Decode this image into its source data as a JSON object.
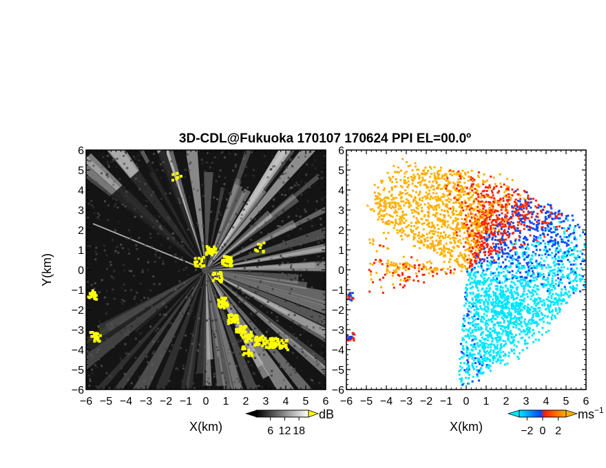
{
  "chart_data": [
    {
      "type": "heatmap",
      "panel": "left",
      "title": "3D-CDL@Fukuoka 170107 170624 PPI EL=00.0º",
      "xlabel": "X(km)",
      "ylabel": "Y(km)",
      "xlim": [
        -6,
        6
      ],
      "ylim": [
        -6,
        6
      ],
      "x_ticks": [
        "−6",
        "−5",
        "−4",
        "−3",
        "−2",
        "−1",
        "0",
        "1",
        "2",
        "3",
        "4",
        "5",
        "6"
      ],
      "y_ticks": [
        "6",
        "5",
        "4",
        "3",
        "2",
        "1",
        "0",
        "−1",
        "−2",
        "−3",
        "−4",
        "−5",
        "−6"
      ],
      "colorbar": {
        "unit": "dB",
        "ticks": [
          "6",
          "12",
          "18"
        ],
        "tick_values": [
          6,
          12,
          18
        ],
        "range": [
          0,
          22
        ],
        "colors": [
          "#000000",
          "#ffffff"
        ],
        "over_color": "#ffff00"
      },
      "center": [
        0,
        0
      ],
      "clutter_color": "#ffff00"
    },
    {
      "type": "heatmap",
      "panel": "right",
      "xlabel": "X(km)",
      "xlim": [
        -6,
        6
      ],
      "ylim": [
        -6,
        6
      ],
      "x_ticks": [
        "−6",
        "−5",
        "−4",
        "−3",
        "−2",
        "−1",
        "0",
        "1",
        "2",
        "3",
        "4",
        "5",
        "6"
      ],
      "y_ticks": [
        "6",
        "5",
        "4",
        "3",
        "2",
        "1",
        "0",
        "−1",
        "−2",
        "−3",
        "−4",
        "−5",
        "−6"
      ],
      "colorbar": {
        "unit": "ms",
        "unit_exp": "−1",
        "ticks": [
          "−2",
          "0",
          "2"
        ],
        "tick_values": [
          -2,
          0,
          2
        ],
        "range": [
          -3,
          3
        ],
        "colors": [
          "#00e5ff",
          "#0048ff",
          "#ff2200",
          "#ffb000"
        ]
      },
      "center": [
        0,
        0
      ]
    }
  ]
}
